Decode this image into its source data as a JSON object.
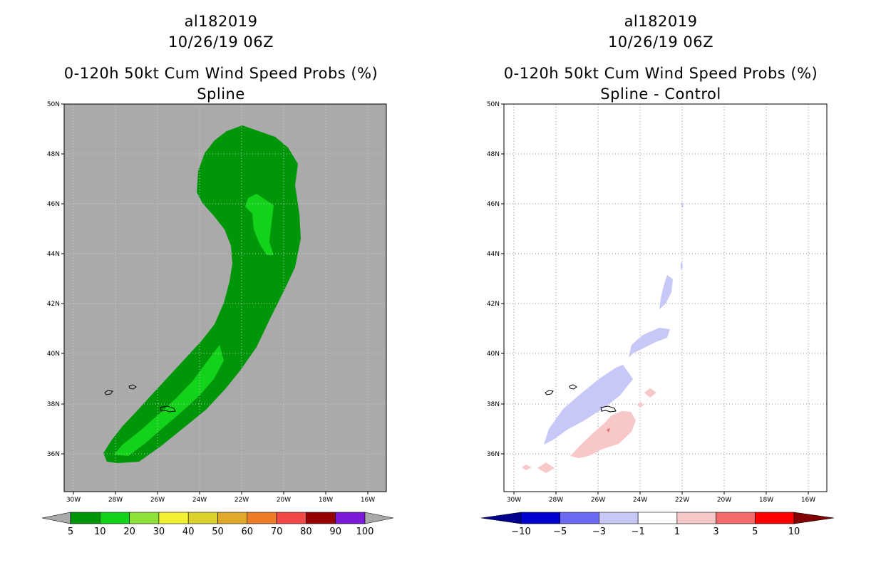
{
  "left_panel": {
    "storm_id": "al182019",
    "datetime": "10/26/19 06Z",
    "product": "0-120h 50kt Cum Wind Speed Probs (%)",
    "subtitle": "Spline",
    "background_color": "#aaaaaa",
    "lat_labels": [
      "50N",
      "48N",
      "46N",
      "44N",
      "42N",
      "40N",
      "38N",
      "36N"
    ],
    "lon_labels": [
      "30W",
      "28W",
      "26W",
      "24W",
      "22W",
      "20W",
      "18W",
      "16W"
    ],
    "colorbar": {
      "labels": [
        "5",
        "10",
        "20",
        "30",
        "40",
        "50",
        "60",
        "70",
        "80",
        "90",
        "100"
      ],
      "colors": [
        "#00960a",
        "#12d21a",
        "#8ee23a",
        "#f2f232",
        "#dcd22e",
        "#e2a82a",
        "#ec7c28",
        "#f24848",
        "#960000",
        "#7c1ada"
      ],
      "end_color": "#aaaaaa"
    },
    "contours": {
      "prob_5_10_color": "#00960a",
      "prob_10_20_color": "#12d21a"
    }
  },
  "right_panel": {
    "storm_id": "al182019",
    "datetime": "10/26/19 06Z",
    "product": "0-120h 50kt Cum Wind Speed Probs (%)",
    "subtitle": "Spline - Control",
    "lat_labels": [
      "50N",
      "48N",
      "46N",
      "44N",
      "42N",
      "40N",
      "38N",
      "36N"
    ],
    "lon_labels": [
      "30W",
      "28W",
      "26W",
      "24W",
      "22W",
      "20W",
      "18W",
      "16W"
    ],
    "colorbar": {
      "labels": [
        "-10",
        "-5",
        "-3",
        "-1",
        "1",
        "3",
        "5",
        "10"
      ],
      "colors": [
        "#0000d2",
        "#6a6af2",
        "#c8c8f8",
        "#ffffff",
        "#f8c8c8",
        "#f26a6a",
        "#ff0000"
      ],
      "low_end_color": "#00008c",
      "high_end_color": "#820000"
    },
    "contours": {
      "negative_color": "#c8c8f8",
      "positive_color": "#f8c8c8",
      "positive_strong_color": "#f26a6a"
    }
  }
}
